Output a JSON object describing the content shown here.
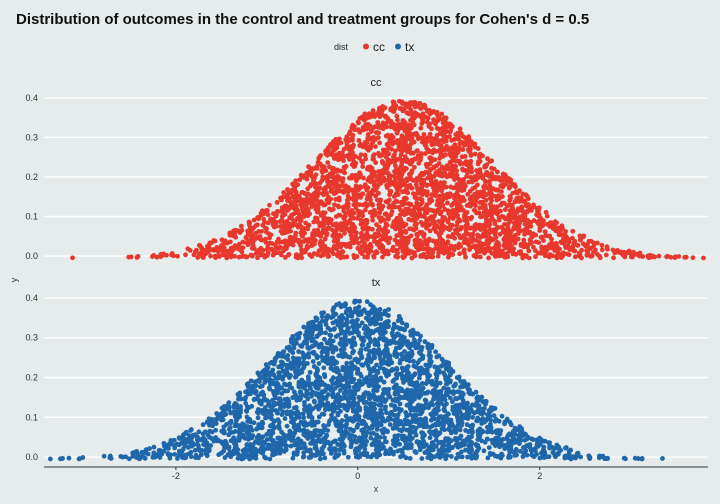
{
  "chart_data": {
    "type": "scatter",
    "title": "Distribution of outcomes in the control and treatment groups for Cohen's d = 0.5",
    "xlabel": "x",
    "ylabel": "y",
    "legend": {
      "title": "dist",
      "position": "top",
      "entries": [
        {
          "label": "cc",
          "color": "#E8382E"
        },
        {
          "label": "tx",
          "color": "#1F67AA"
        }
      ]
    },
    "facets": [
      {
        "label": "cc",
        "series": "cc",
        "mean": 0.5,
        "sd": 1.0,
        "n": 3000
      },
      {
        "label": "tx",
        "series": "tx",
        "mean": 0.0,
        "sd": 1.0,
        "n": 3000
      }
    ],
    "xlim": [
      -3.45,
      3.85
    ],
    "ylim": [
      -0.01,
      0.42
    ],
    "x_ticks": [
      "-2",
      "0",
      "2"
    ],
    "x_tick_values": [
      -2,
      0,
      2
    ],
    "y_ticks": [
      "0.0",
      "0.1",
      "0.2",
      "0.3",
      "0.4"
    ],
    "y_tick_values": [
      0,
      0.1,
      0.2,
      0.3,
      0.4
    ],
    "grid": "horizontal major lines",
    "colors": {
      "background": "#E6ECEC",
      "grid": "#FFFFFF",
      "axis": "#333333"
    }
  }
}
